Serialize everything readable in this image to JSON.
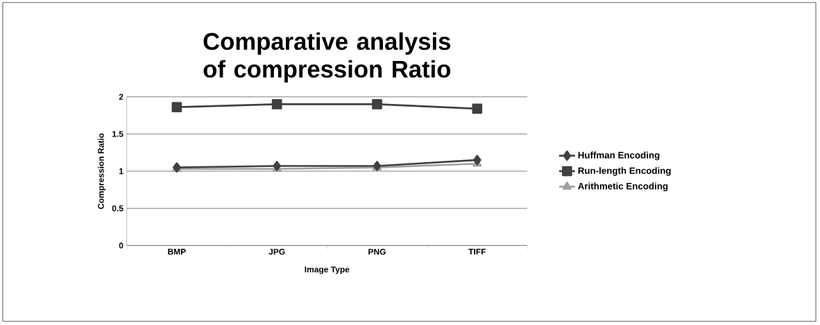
{
  "chart_data": {
    "type": "line",
    "title": "Comparative analysis of compression Ratio",
    "xlabel": "Image Type",
    "ylabel": "Compression Ratio",
    "categories": [
      "BMP",
      "JPG",
      "PNG",
      "TIFF"
    ],
    "series": [
      {
        "name": "Huffman Encoding",
        "color": "#404040",
        "marker": "diamond",
        "values": [
          1.05,
          1.07,
          1.07,
          1.15
        ]
      },
      {
        "name": "Run-length Encoding",
        "color": "#404040",
        "marker": "square",
        "values": [
          1.86,
          1.9,
          1.9,
          1.84
        ]
      },
      {
        "name": "Arithmetic Encoding",
        "color": "#a0a0a0",
        "marker": "triangle",
        "values": [
          1.03,
          1.03,
          1.05,
          1.1
        ]
      }
    ],
    "ylim": [
      0,
      2
    ],
    "yticks": [
      0,
      0.5,
      1,
      1.5,
      2
    ],
    "grid": "y",
    "legend": "right"
  }
}
